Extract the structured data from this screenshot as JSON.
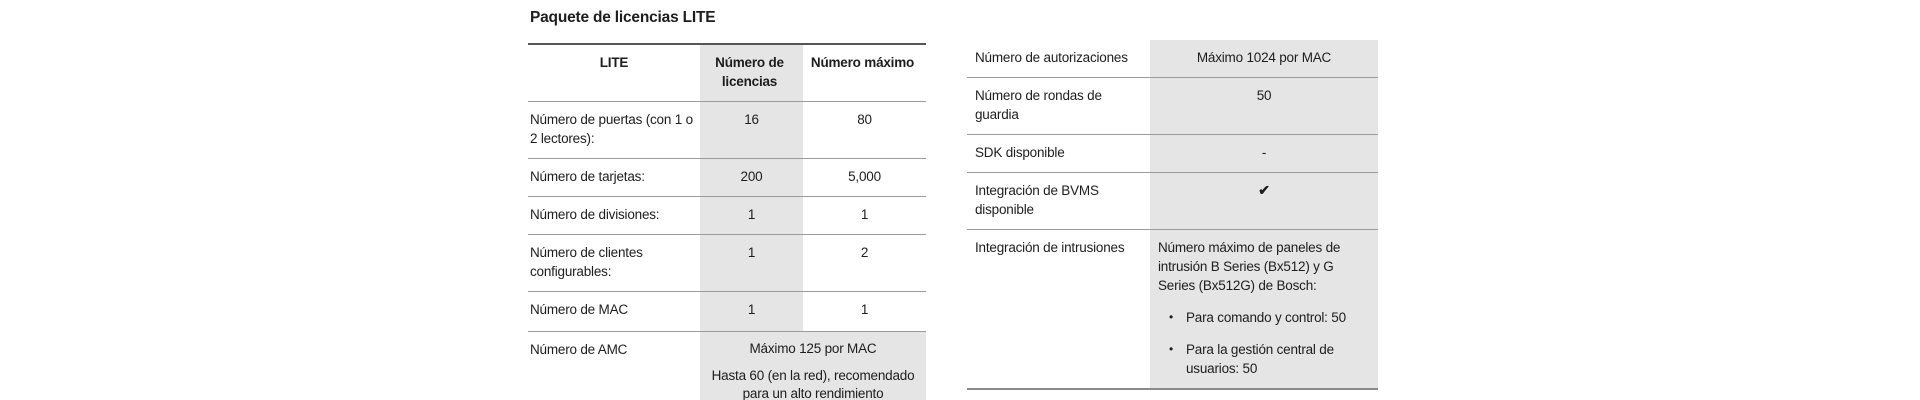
{
  "page": {
    "title": "Paquete de licencias LITE"
  },
  "colors": {
    "text": "#1d1d1d",
    "shade": "#e5e5e5",
    "rule_light": "#9b9b9b",
    "rule_dark": "#565656",
    "rule_bottom": "#8a8a8a",
    "bg": "#ffffff"
  },
  "icons": {
    "check": "✔",
    "bullet": "•"
  },
  "left_table": {
    "headers": {
      "col0": "LITE",
      "col1": "Número de licencias",
      "col2": "Número máximo"
    },
    "rows": [
      {
        "label": "Número de puertas (con 1 o 2 lectores):",
        "licencias": "16",
        "maximo": "80"
      },
      {
        "label": "Número de tarjetas:",
        "licencias": "200",
        "maximo": "5,000"
      },
      {
        "label": "Número de divisiones:",
        "licencias": "1",
        "maximo": "1"
      },
      {
        "label": "Número de clientes configurables:",
        "licencias": "1",
        "maximo": "2"
      },
      {
        "label": "Número de MAC",
        "licencias": "1",
        "maximo": "1"
      },
      {
        "label": "Número de AMC",
        "value_line1": "Máximo 125 por MAC",
        "value_line2": "Hasta 60 (en la red), recomendado para un alto rendimiento"
      }
    ]
  },
  "right_table": {
    "rows": [
      {
        "label": "Número de autorizaciones",
        "value": "Máximo 1024 por MAC"
      },
      {
        "label": "Número de rondas de guardia",
        "value": "50"
      },
      {
        "label": "SDK disponible",
        "value": "-"
      },
      {
        "label": "Integración de BVMS disponible",
        "value": "✔"
      },
      {
        "label": "Integración de intrusiones",
        "value_intro": "Número máximo de paneles de intrusión B Series (Bx512) y G Series (Bx512G) de Bosch:",
        "bullets": [
          "Para comando y control: 50",
          "Para la gestión central de usuarios: 50"
        ]
      }
    ]
  }
}
